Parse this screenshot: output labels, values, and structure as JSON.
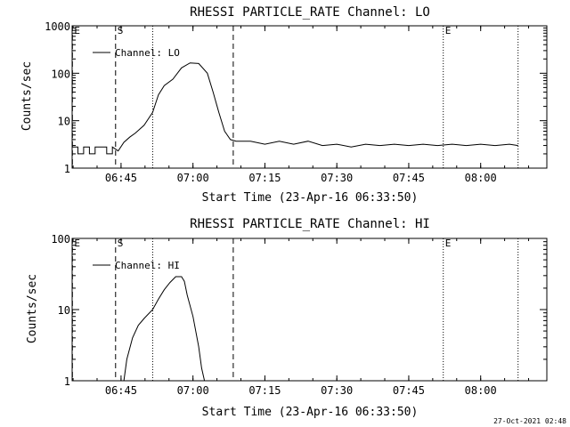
{
  "chart_data": [
    {
      "type": "line",
      "title": "RHESSI PARTICLE_RATE Channel: LO",
      "xlabel": "Start Time (23-Apr-16 06:33:50)",
      "ylabel": "Counts/sec",
      "yscale": "log",
      "ylim": [
        1,
        1000
      ],
      "xlim": [
        6.58,
        8.23
      ],
      "xticks": [
        6.75,
        7.0,
        7.25,
        7.5,
        7.75,
        8.0
      ],
      "xtick_labels": [
        "06:45",
        "07:00",
        "07:15",
        "07:30",
        "07:45",
        "08:00"
      ],
      "yticks": [
        1,
        10,
        100,
        1000
      ],
      "ytick_labels": [
        "1",
        "10",
        "100",
        "1000"
      ],
      "legend": "Channel: LO",
      "legend_position": "top-left",
      "markers": [
        {
          "label": "E",
          "x": 6.581,
          "style": "dashed"
        },
        {
          "label": "S",
          "x": 6.731,
          "style": "dashed"
        },
        {
          "label": "",
          "x": 6.86,
          "style": "dotted"
        },
        {
          "label": "",
          "x": 7.14,
          "style": "dashed"
        },
        {
          "label": "E",
          "x": 7.87,
          "style": "dotted"
        },
        {
          "label": "",
          "x": 8.13,
          "style": "dotted"
        }
      ],
      "series": [
        {
          "name": "Channel: LO",
          "x": [
            6.58,
            6.6,
            6.6,
            6.62,
            6.62,
            6.64,
            6.64,
            6.66,
            6.66,
            6.7,
            6.7,
            6.72,
            6.72,
            6.74,
            6.76,
            6.78,
            6.8,
            6.83,
            6.86,
            6.88,
            6.9,
            6.93,
            6.96,
            6.99,
            7.02,
            7.05,
            7.07,
            7.09,
            7.11,
            7.13,
            7.15,
            7.17,
            7.2,
            7.25,
            7.3,
            7.35,
            7.4,
            7.45,
            7.5,
            7.55,
            7.6,
            7.65,
            7.7,
            7.75,
            7.8,
            7.85,
            7.9,
            7.95,
            8.0,
            8.05,
            8.1,
            8.13
          ],
          "values": [
            2.8,
            2.8,
            2.0,
            2.0,
            2.8,
            2.8,
            2.0,
            2.0,
            2.8,
            2.8,
            2.0,
            2.0,
            2.8,
            2.3,
            3.5,
            4.5,
            5.5,
            8.0,
            15,
            35,
            55,
            75,
            130,
            165,
            160,
            100,
            40,
            15,
            6.0,
            4.0,
            3.7,
            3.7,
            3.7,
            3.2,
            3.7,
            3.2,
            3.7,
            3.0,
            3.2,
            2.8,
            3.2,
            3.0,
            3.2,
            3.0,
            3.2,
            3.0,
            3.2,
            3.0,
            3.2,
            3.0,
            3.2,
            3.0
          ]
        }
      ]
    },
    {
      "type": "line",
      "title": "RHESSI PARTICLE_RATE Channel: HI",
      "xlabel": "Start Time (23-Apr-16 06:33:50)",
      "ylabel": "Counts/sec",
      "yscale": "log",
      "ylim": [
        1,
        100
      ],
      "xlim": [
        6.58,
        8.23
      ],
      "xticks": [
        6.75,
        7.0,
        7.25,
        7.5,
        7.75,
        8.0
      ],
      "xtick_labels": [
        "06:45",
        "07:00",
        "07:15",
        "07:30",
        "07:45",
        "08:00"
      ],
      "yticks": [
        1,
        10,
        100
      ],
      "ytick_labels": [
        "1",
        "10",
        "100"
      ],
      "legend": "Channel: HI",
      "legend_position": "top-left",
      "markers": [
        {
          "label": "E",
          "x": 6.581,
          "style": "dashed"
        },
        {
          "label": "S",
          "x": 6.731,
          "style": "dashed"
        },
        {
          "label": "",
          "x": 6.86,
          "style": "dotted"
        },
        {
          "label": "",
          "x": 7.14,
          "style": "dashed"
        },
        {
          "label": "E",
          "x": 7.87,
          "style": "dotted"
        },
        {
          "label": "",
          "x": 8.13,
          "style": "dotted"
        }
      ],
      "series": [
        {
          "name": "Channel: HI",
          "x": [
            6.76,
            6.77,
            6.79,
            6.81,
            6.83,
            6.86,
            6.88,
            6.9,
            6.92,
            6.94,
            6.96,
            6.97,
            6.98,
            7.0,
            7.02,
            7.03,
            7.04
          ],
          "values": [
            1.0,
            2.0,
            4.0,
            6.0,
            7.5,
            10,
            14,
            19,
            24,
            29,
            29,
            25,
            16,
            8.0,
            3.0,
            1.5,
            1.0
          ]
        }
      ]
    }
  ],
  "footer": {
    "date_stamp": "27-Oct-2021 02:48"
  }
}
